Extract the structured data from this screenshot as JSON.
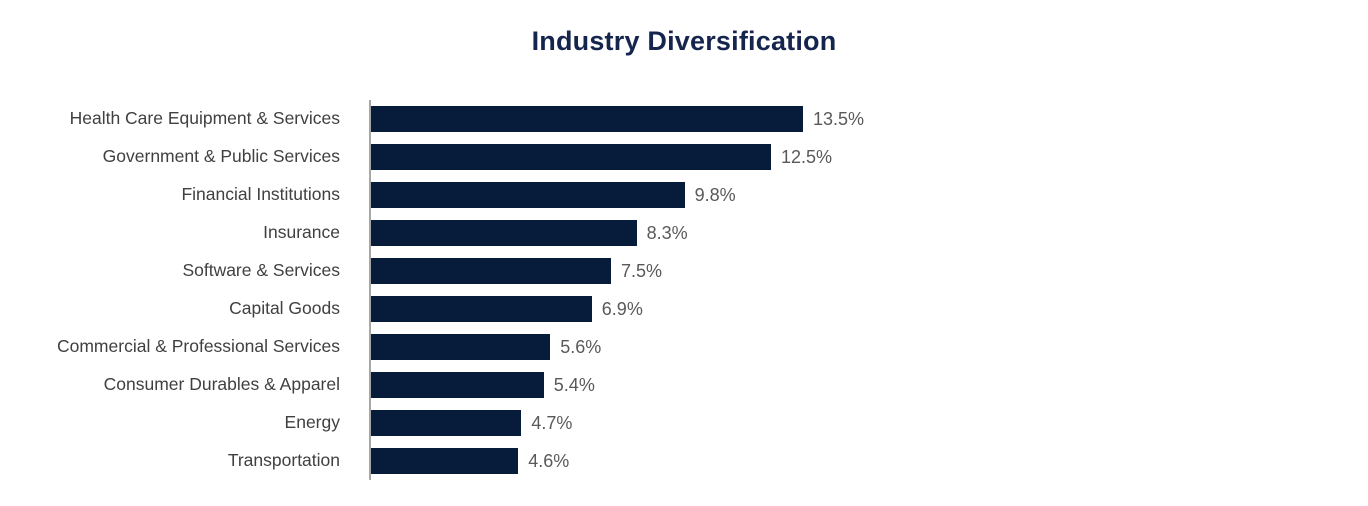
{
  "chart_data": {
    "type": "bar",
    "orientation": "horizontal",
    "title": "Industry Diversification",
    "categories": [
      "Health Care Equipment & Services",
      "Government & Public Services",
      "Financial Institutions",
      "Insurance",
      "Software & Services",
      "Capital Goods",
      "Commercial & Professional Services",
      "Consumer Durables & Apparel",
      "Energy",
      "Transportation"
    ],
    "values": [
      13.5,
      12.5,
      9.8,
      8.3,
      7.5,
      6.9,
      5.6,
      5.4,
      4.7,
      4.6
    ],
    "value_labels": [
      "13.5%",
      "12.5%",
      "9.8%",
      "8.3%",
      "7.5%",
      "6.9%",
      "5.6%",
      "5.4%",
      "4.7%",
      "4.6%"
    ],
    "xlabel": "",
    "ylabel": "",
    "xlim": [
      0,
      13.5
    ],
    "grid": "off",
    "legend": "none",
    "colors": {
      "bar": "#071b3b",
      "title": "#16254e",
      "category_label": "#404040",
      "value_label": "#595959",
      "axis_line": "#a6a6a6",
      "background": "#ffffff"
    }
  }
}
